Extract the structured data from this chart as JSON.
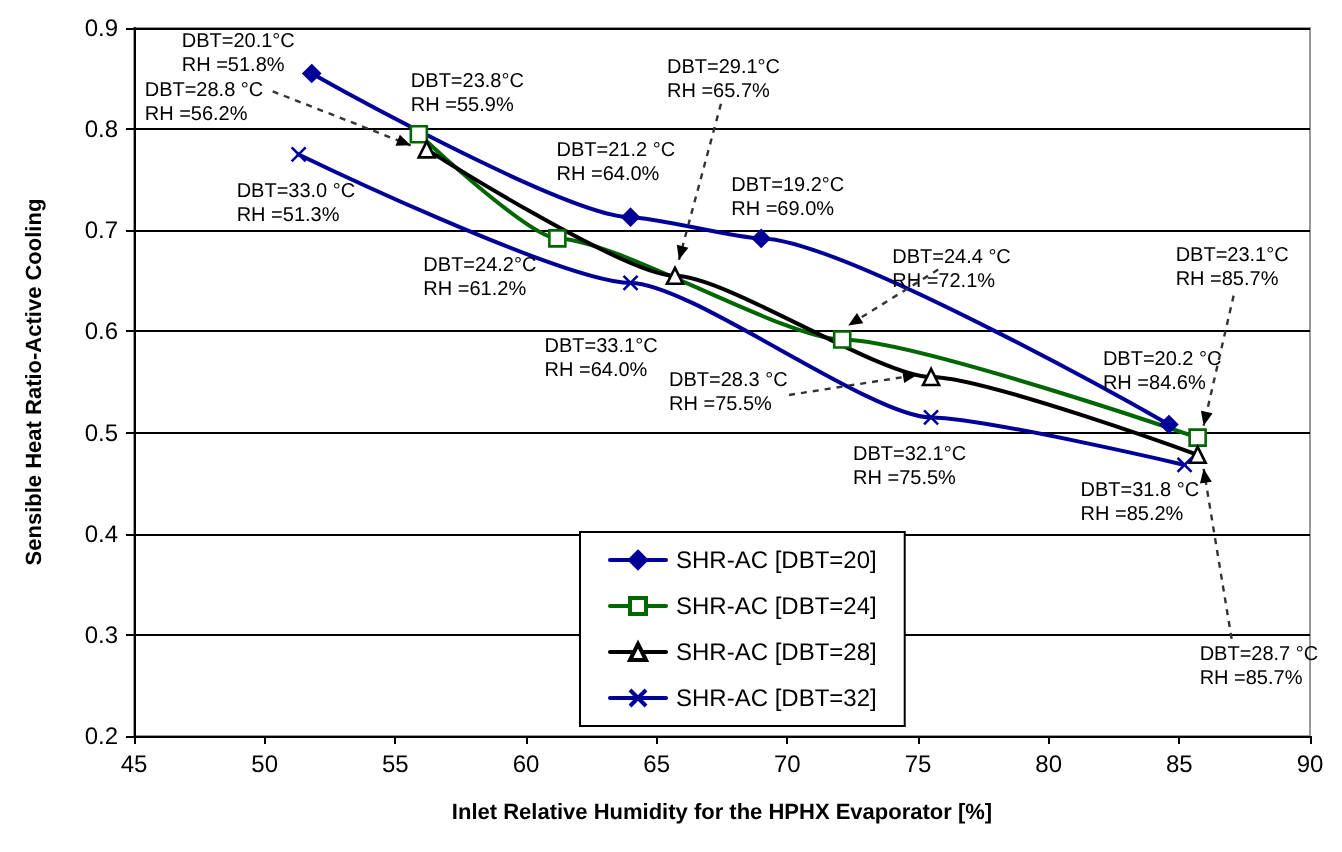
{
  "chart_data": {
    "type": "line",
    "xlabel": "Inlet Relative Humidity for the HPHX Evaporator [%]",
    "ylabel": "Sensible Heat Ratio-Active Cooling",
    "xlim": [
      45,
      90
    ],
    "xticks": [
      45,
      50,
      55,
      60,
      65,
      70,
      75,
      80,
      85,
      90
    ],
    "ylim": [
      0.2,
      0.9
    ],
    "yticks": [
      0.2,
      0.3,
      0.4,
      0.5,
      0.6,
      0.7,
      0.8,
      0.9
    ],
    "grid": "y",
    "legend": "bottom",
    "series": [
      {
        "name": "SHR-AC [DBT=20]",
        "color": "#000099",
        "marker": "diamond",
        "x": [
          51.8,
          64.0,
          69.0,
          84.6
        ],
        "values": [
          0.855,
          0.713,
          0.692,
          0.508
        ]
      },
      {
        "name": "SHR-AC [DBT=24]",
        "color": "#006600",
        "marker": "square",
        "x": [
          55.9,
          61.2,
          72.1,
          85.7
        ],
        "values": [
          0.795,
          0.692,
          0.592,
          0.495
        ]
      },
      {
        "name": "SHR-AC [DBT=28]",
        "color": "#000000",
        "marker": "triangle",
        "x": [
          56.2,
          65.7,
          75.5,
          85.7
        ],
        "values": [
          0.78,
          0.655,
          0.555,
          0.478
        ]
      },
      {
        "name": "SHR-AC [DBT=32]",
        "color": "#000099",
        "marker": "cross",
        "x": [
          51.3,
          64.0,
          75.5,
          85.2
        ],
        "values": [
          0.775,
          0.648,
          0.515,
          0.468
        ]
      }
    ],
    "annotations": [
      {
        "text": "DBT=20.1°C\nRH =51.8%",
        "x": 51.8,
        "y": 0.855
      },
      {
        "text": "DBT=23.8°C\nRH =55.9%",
        "x": 55.9,
        "y": 0.795
      },
      {
        "text": "DBT=28.8 °C\nRH =56.2%",
        "x": 56.2,
        "y": 0.78
      },
      {
        "text": "DBT=33.0 °C\nRH =51.3%",
        "x": 51.3,
        "y": 0.775
      },
      {
        "text": "DBT=21.2 °C\nRH =64.0%",
        "x": 64.0,
        "y": 0.713
      },
      {
        "text": "DBT=29.1°C\nRH =65.7%",
        "x": 65.7,
        "y": 0.655
      },
      {
        "text": "DBT=19.2°C\nRH =69.0%",
        "x": 69.0,
        "y": 0.692
      },
      {
        "text": "DBT=24.2°C\nRH =61.2%",
        "x": 61.2,
        "y": 0.692
      },
      {
        "text": "DBT=33.1°C\nRH =64.0%",
        "x": 64.0,
        "y": 0.648
      },
      {
        "text": "DBT=24.4 °C\nRH =72.1%",
        "x": 72.1,
        "y": 0.592
      },
      {
        "text": "DBT=28.3 °C\nRH =75.5%",
        "x": 75.5,
        "y": 0.555
      },
      {
        "text": "DBT=32.1°C\nRH =75.5%",
        "x": 75.5,
        "y": 0.515
      },
      {
        "text": "DBT=20.2 °C\nRH =84.6%",
        "x": 84.6,
        "y": 0.508
      },
      {
        "text": "DBT=23.1°C\nRH =85.7%",
        "x": 85.7,
        "y": 0.495
      },
      {
        "text": "DBT=31.8 °C\nRH =85.2%",
        "x": 85.2,
        "y": 0.468
      },
      {
        "text": "DBT=28.7 °C\nRH =85.7%",
        "x": 85.7,
        "y": 0.478
      }
    ]
  }
}
